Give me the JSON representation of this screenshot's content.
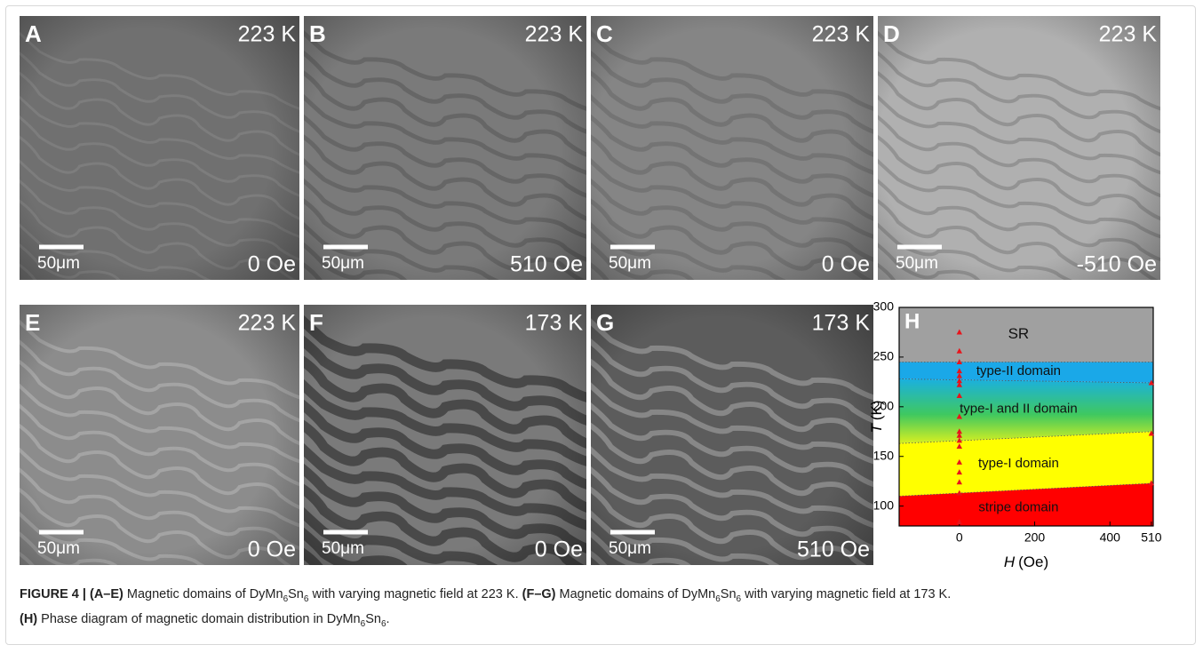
{
  "panels": [
    {
      "letter": "A",
      "temperature": "223 K",
      "field": "0 Oe",
      "scale": "50μm"
    },
    {
      "letter": "B",
      "temperature": "223 K",
      "field": "510 Oe",
      "scale": "50μm"
    },
    {
      "letter": "C",
      "temperature": "223 K",
      "field": "0 Oe",
      "scale": "50μm"
    },
    {
      "letter": "D",
      "temperature": "223 K",
      "field": "-510 Oe",
      "scale": "50μm"
    },
    {
      "letter": "E",
      "temperature": "223 K",
      "field": "0 Oe",
      "scale": "50μm"
    },
    {
      "letter": "F",
      "temperature": "173 K",
      "field": "0 Oe",
      "scale": "50μm"
    },
    {
      "letter": "G",
      "temperature": "173 K",
      "field": "510 Oe",
      "scale": "50μm"
    }
  ],
  "phase_diagram": {
    "letter": "H",
    "xlabel": {
      "symbol": "H",
      "unit": "(Oe)"
    },
    "ylabel": {
      "symbol": "T",
      "unit": "(K)"
    },
    "xlim": [
      -160,
      515
    ],
    "ylim": [
      80,
      300
    ],
    "xticks": [
      0,
      200,
      400,
      510
    ],
    "yticks": [
      100,
      150,
      200,
      250,
      300
    ],
    "regions": [
      {
        "name": "SR",
        "color": "#a0a0a0",
        "bottom": [
          245,
          245
        ],
        "top": [
          300,
          300
        ]
      },
      {
        "name": "type-II domain",
        "color": "#1aa8e8",
        "bottom": [
          228,
          224
        ],
        "top": [
          245,
          245
        ]
      },
      {
        "name": "type-I and II domain",
        "color": "#4fc86a",
        "bottom": [
          163,
          175
        ],
        "top": [
          228,
          224
        ]
      },
      {
        "name": "type-I domain",
        "color": "#ffff00",
        "bottom": [
          110,
          123
        ],
        "top": [
          163,
          175
        ]
      },
      {
        "name": "stripe domain",
        "color": "#ff0000",
        "bottom": [
          80,
          80
        ],
        "top": [
          110,
          123
        ]
      }
    ],
    "points": {
      "color": "#e8141b",
      "H": [
        0,
        0,
        0,
        0,
        0,
        0,
        0,
        0,
        0,
        0,
        0,
        0,
        0,
        0,
        0,
        0,
        0,
        0,
        510,
        510,
        510
      ],
      "T": [
        275,
        256,
        245,
        236,
        231,
        226,
        222,
        211,
        190,
        175,
        171,
        166,
        160,
        144,
        134,
        124,
        113,
        84,
        224,
        173,
        123
      ]
    }
  },
  "caption": [
    [
      {
        "text": "FIGURE 4 | (A–E)",
        "kind": "bold"
      },
      {
        "text": " Magnetic domains of DyMn",
        "kind": "normal"
      },
      {
        "text": "6",
        "kind": "sub"
      },
      {
        "text": "Sn",
        "kind": "normal"
      },
      {
        "text": "6",
        "kind": "sub"
      },
      {
        "text": " with varying magnetic field at 223 K. ",
        "kind": "normal"
      },
      {
        "text": "(F–G)",
        "kind": "bold"
      },
      {
        "text": " Magnetic domains of DyMn",
        "kind": "normal"
      },
      {
        "text": "6",
        "kind": "sub"
      },
      {
        "text": "Sn",
        "kind": "normal"
      },
      {
        "text": "6",
        "kind": "sub"
      },
      {
        "text": " with varying magnetic field at 173 K.",
        "kind": "normal"
      }
    ],
    [
      {
        "text": "(H)",
        "kind": "bold"
      },
      {
        "text": " Phase diagram of magnetic domain distribution in DyMn",
        "kind": "normal"
      },
      {
        "text": "6",
        "kind": "sub"
      },
      {
        "text": "Sn",
        "kind": "normal"
      },
      {
        "text": "6",
        "kind": "sub"
      },
      {
        "text": ".",
        "kind": "normal"
      }
    ]
  ]
}
